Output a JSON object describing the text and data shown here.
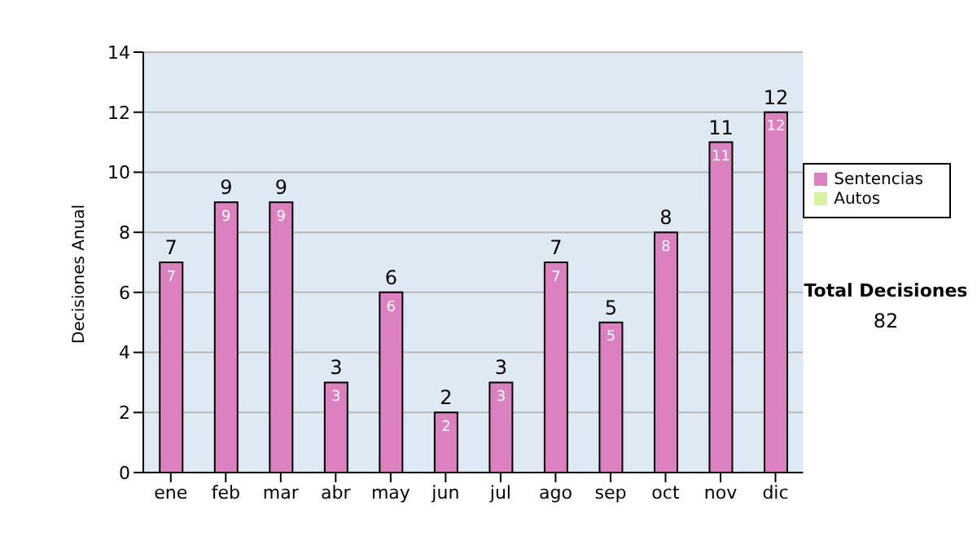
{
  "chart_data": {
    "type": "bar",
    "ylabel": "Decisiones Anual",
    "categories": [
      "ene",
      "feb",
      "mar",
      "abr",
      "may",
      "jun",
      "jul",
      "ago",
      "sep",
      "oct",
      "nov",
      "dic"
    ],
    "series": [
      {
        "name": "Sentencias",
        "color": "#dd80c0",
        "values": [
          7,
          9,
          9,
          3,
          6,
          2,
          3,
          7,
          5,
          8,
          11,
          12
        ],
        "value_labels": [
          "7",
          "9",
          "9",
          "3",
          "6",
          "2",
          "3",
          "7",
          "5",
          "8",
          "11",
          "12"
        ]
      },
      {
        "name": "Autos",
        "color": "#d8f0a0",
        "values": [
          0,
          0,
          0,
          0,
          0,
          0,
          0,
          0,
          0,
          0,
          0,
          0
        ]
      }
    ],
    "stacked": true,
    "totals": [
      "7",
      "9",
      "9",
      "3",
      "6",
      "2",
      "3",
      "7",
      "5",
      "8",
      "11",
      "12"
    ],
    "ylim": [
      0,
      14
    ],
    "yticks": [
      0,
      2,
      4,
      6,
      8,
      10,
      12,
      14
    ],
    "grid": "y",
    "legend": "right",
    "annotations": [
      "Total Decisiones",
      "82"
    ]
  }
}
